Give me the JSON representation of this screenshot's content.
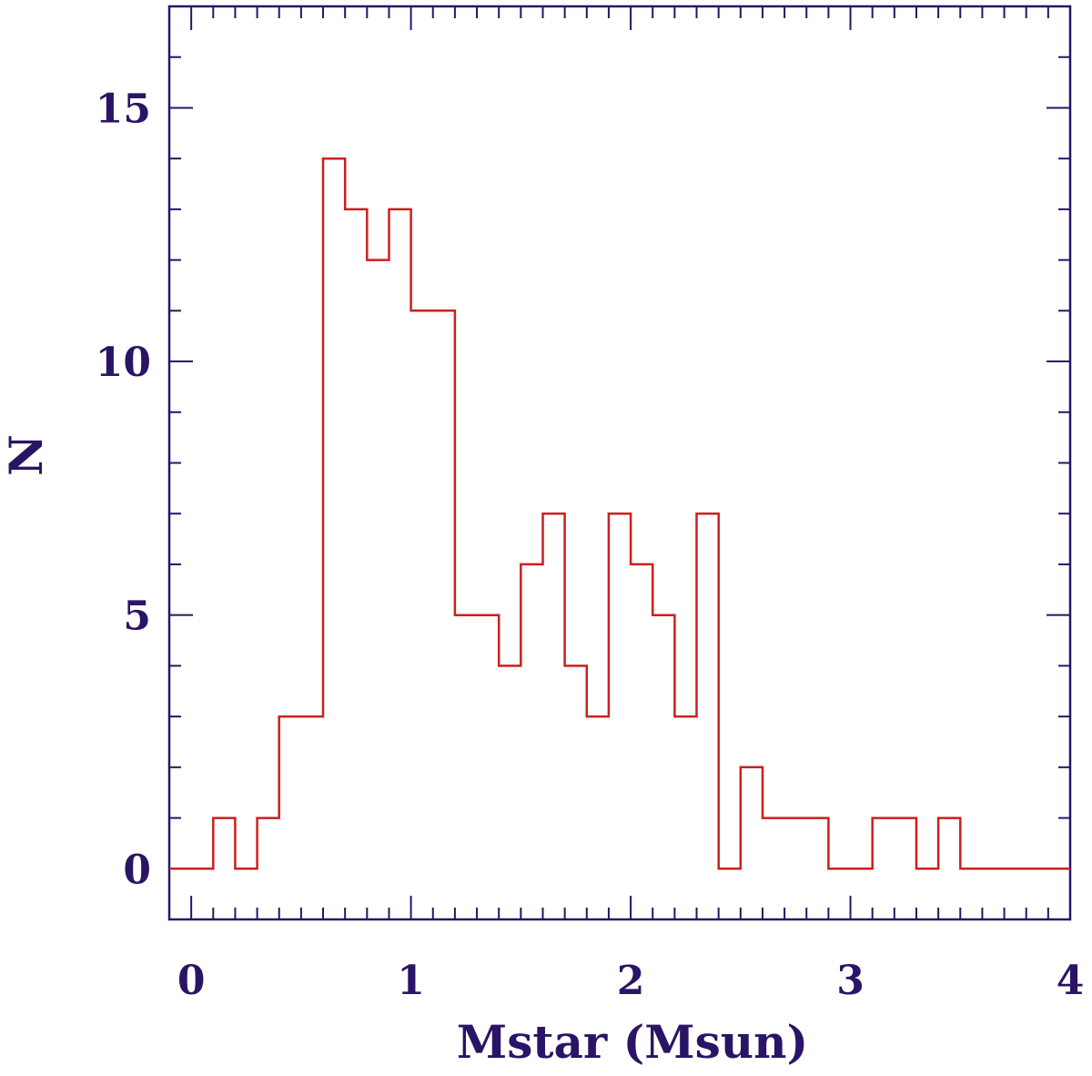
{
  "chart_data": {
    "type": "histogram",
    "title": "",
    "xlabel": "Mstar (Msun)",
    "ylabel": "N",
    "xlim": [
      -0.1,
      4.0
    ],
    "ylim": [
      -1,
      17
    ],
    "xticks": [
      0,
      1,
      2,
      3,
      4
    ],
    "yticks": [
      0,
      5,
      10,
      15
    ],
    "xtick_labels": [
      "0",
      "1",
      "2",
      "3",
      "4"
    ],
    "ytick_labels": [
      "0",
      "5",
      "10",
      "15"
    ],
    "x_minor_step": 0.1,
    "y_minor_step": 1,
    "grid": false,
    "bin_edges": [
      -0.1,
      0.1,
      0.2,
      0.3,
      0.4,
      0.5,
      0.6,
      0.7,
      0.8,
      0.9,
      1.0,
      1.1,
      1.2,
      1.3,
      1.4,
      1.5,
      1.6,
      1.7,
      1.8,
      1.9,
      2.0,
      2.1,
      2.2,
      2.3,
      2.4,
      2.5,
      2.6,
      2.7,
      2.8,
      2.9,
      3.0,
      3.1,
      3.2,
      3.3,
      3.4,
      3.5,
      3.6,
      3.7,
      3.8,
      3.9,
      4.0
    ],
    "counts": [
      0,
      1,
      0,
      1,
      3,
      3,
      14,
      13,
      12,
      13,
      11,
      11,
      5,
      5,
      4,
      6,
      7,
      4,
      3,
      7,
      6,
      5,
      3,
      7,
      0,
      2,
      1,
      1,
      1,
      0,
      0,
      1,
      1,
      0,
      1,
      0,
      0,
      0,
      0,
      0
    ],
    "colors": {
      "axis": "#2a1466",
      "line": "#cc1f1f"
    }
  }
}
